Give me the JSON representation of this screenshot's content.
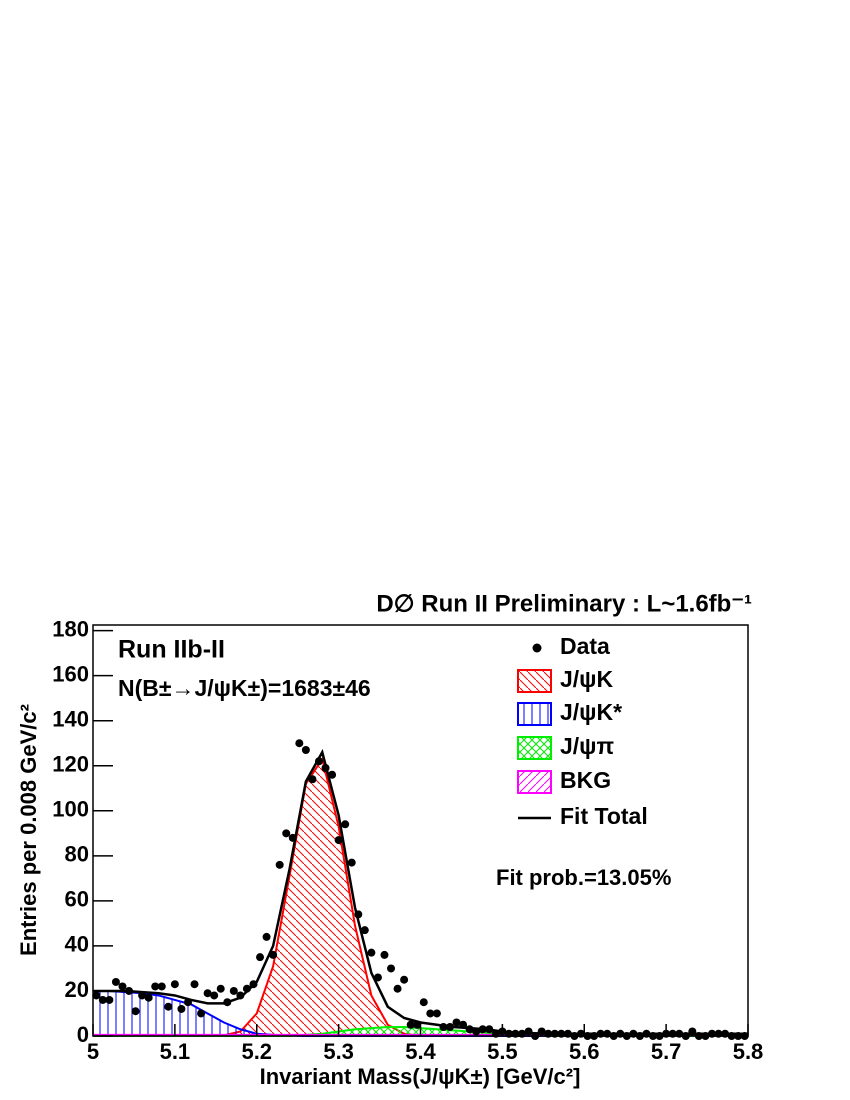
{
  "chart_data": {
    "type": "histogram-fit",
    "title": "D∅ Run II Preliminary : L~1.6fb⁻¹",
    "x_label": "Invariant Mass(J/ψK±) [GeV/c²]",
    "y_label": "Entries per 0.008 GeV/c²",
    "annotations": [
      "Run IIb-II",
      "N(B±→J/ψK±)=1683±46",
      "Fit prob.=13.05%"
    ],
    "xlim": [
      5,
      5.8
    ],
    "ylim": [
      0,
      182.5
    ],
    "xticks": [
      5,
      5.1,
      5.2,
      5.3,
      5.4,
      5.5,
      5.6,
      5.7,
      5.8
    ],
    "yticks": [
      0,
      20,
      40,
      60,
      80,
      100,
      120,
      140,
      160,
      180
    ],
    "legend": "top-right",
    "data": {
      "name": "Data",
      "color": "#000000",
      "x": [
        5.004,
        5.012,
        5.02,
        5.028,
        5.036,
        5.044,
        5.052,
        5.06,
        5.068,
        5.076,
        5.084,
        5.092,
        5.1,
        5.108,
        5.116,
        5.124,
        5.132,
        5.14,
        5.148,
        5.156,
        5.164,
        5.172,
        5.18,
        5.188,
        5.196,
        5.204,
        5.212,
        5.22,
        5.228,
        5.236,
        5.244,
        5.252,
        5.26,
        5.268,
        5.276,
        5.284,
        5.292,
        5.3,
        5.308,
        5.316,
        5.324,
        5.332,
        5.34,
        5.348,
        5.356,
        5.364,
        5.372,
        5.38,
        5.388,
        5.396,
        5.404,
        5.412,
        5.42,
        5.428,
        5.436,
        5.444,
        5.452,
        5.46,
        5.468,
        5.476,
        5.484,
        5.492,
        5.5,
        5.508,
        5.516,
        5.524,
        5.532,
        5.54,
        5.548,
        5.556,
        5.564,
        5.572,
        5.58,
        5.588,
        5.596,
        5.604,
        5.612,
        5.62,
        5.628,
        5.636,
        5.644,
        5.652,
        5.66,
        5.668,
        5.676,
        5.684,
        5.692,
        5.7,
        5.708,
        5.716,
        5.724,
        5.732,
        5.74,
        5.748,
        5.756,
        5.764,
        5.772,
        5.78,
        5.788,
        5.796
      ],
      "values": [
        18,
        16,
        16,
        24,
        22,
        20,
        11,
        18,
        17,
        22,
        22,
        13,
        23,
        12,
        15,
        23,
        10,
        19,
        18,
        21,
        15,
        20,
        18,
        21,
        23,
        35,
        44,
        36,
        76,
        90,
        88,
        130,
        127,
        114,
        122,
        119,
        116,
        87,
        94,
        77,
        54,
        47,
        37,
        26,
        36,
        30,
        21,
        25,
        5,
        5,
        15,
        10,
        10,
        4,
        4,
        6,
        5,
        3,
        2,
        3,
        3,
        1,
        2,
        1,
        1,
        1,
        2,
        0,
        2,
        1,
        1,
        1,
        1,
        0,
        1,
        0,
        0,
        1,
        1,
        0,
        1,
        0,
        1,
        0,
        1,
        0,
        0,
        1,
        1,
        1,
        0,
        2,
        0,
        0,
        1,
        1,
        1,
        0,
        0,
        0
      ]
    },
    "curves": {
      "x": [
        5,
        5.02,
        5.04,
        5.06,
        5.08,
        5.1,
        5.12,
        5.14,
        5.16,
        5.18,
        5.2,
        5.22,
        5.24,
        5.26,
        5.28,
        5.3,
        5.32,
        5.34,
        5.36,
        5.38,
        5.4,
        5.42,
        5.44,
        5.46,
        5.48,
        5.5,
        5.52,
        5.54,
        5.56,
        5.58,
        5.6,
        5.62,
        5.64,
        5.66,
        5.68,
        5.7,
        5.72,
        5.74,
        5.76,
        5.78,
        5.8
      ],
      "series": [
        {
          "name": "J/ψK",
          "color": "#ff0000",
          "hatch": "backslash",
          "values": [
            0,
            0,
            0,
            0,
            0,
            0,
            0,
            0,
            0.3,
            2,
            10,
            31,
            71,
            112,
            123,
            93,
            49,
            18,
            5,
            1,
            0,
            0,
            0,
            0,
            0,
            0,
            0,
            0,
            0,
            0,
            0,
            0,
            0,
            0,
            0,
            0,
            0,
            0,
            0,
            0,
            0
          ]
        },
        {
          "name": "J/ψK*",
          "color": "#0000ff",
          "hatch": "vertical",
          "values": [
            20,
            20,
            19.5,
            19,
            18,
            16,
            14,
            10,
            6,
            3,
            1,
            0.5,
            0.2,
            0,
            0,
            0,
            0,
            0,
            0,
            0,
            0,
            0,
            0,
            0,
            0,
            0,
            0,
            0,
            0,
            0,
            0,
            0,
            0,
            0,
            0,
            0,
            0,
            0,
            0,
            0,
            0
          ]
        },
        {
          "name": "J/ψπ",
          "color": "#00ee00",
          "hatch": "cross",
          "values": [
            0,
            0,
            0,
            0,
            0,
            0,
            0,
            0,
            0,
            0,
            0,
            0,
            0,
            0.5,
            1,
            2,
            3,
            3.5,
            4,
            4,
            3.5,
            3,
            2.5,
            2,
            1.5,
            1,
            0.5,
            0.3,
            0,
            0,
            0,
            0,
            0,
            0,
            0,
            0,
            0,
            0,
            0,
            0,
            0
          ]
        },
        {
          "name": "BKG",
          "color": "#ff00ff",
          "hatch": "slash",
          "values": [
            0.5,
            0.5,
            0.5,
            0.5,
            0.5,
            0.5,
            0.5,
            0.5,
            0.5,
            0.5,
            0.5,
            0.5,
            0.5,
            0.5,
            0.5,
            0.5,
            0.5,
            0.5,
            0.5,
            0.5,
            0.5,
            0.5,
            0.5,
            0.5,
            0.5,
            0.5,
            0.5,
            0.5,
            0.5,
            0.5,
            0.5,
            0.5,
            0.5,
            0.5,
            0.5,
            0.5,
            0.5,
            0.5,
            0.5,
            0.5,
            0.5
          ]
        },
        {
          "name": "Fit Total",
          "color": "#000000",
          "hatch": "none",
          "values": [
            20,
            20,
            20,
            19.5,
            19,
            18,
            16,
            14.5,
            14.5,
            17,
            24,
            40,
            74,
            113,
            126,
            98,
            57,
            28,
            13,
            8,
            6,
            5,
            4,
            3.5,
            3,
            2,
            1.5,
            1.2,
            1,
            1,
            1,
            1,
            1,
            1,
            1,
            1,
            1,
            1,
            1,
            1,
            1
          ]
        }
      ]
    }
  }
}
